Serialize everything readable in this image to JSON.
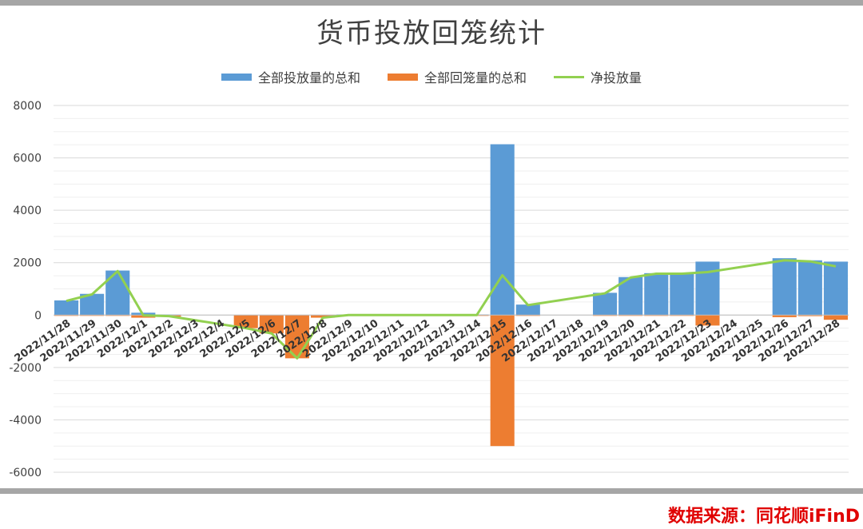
{
  "chart_data": {
    "type": "bar",
    "title": "货币投放回笼统计",
    "categories": [
      "2022/11/28",
      "2022/11/29",
      "2022/11/30",
      "2022/12/1",
      "2022/12/2",
      "2022/12/3",
      "2022/12/4",
      "2022/12/5",
      "2022/12/6",
      "2022/12/7",
      "2022/12/8",
      "2022/12/9",
      "2022/12/10",
      "2022/12/11",
      "2022/12/12",
      "2022/12/13",
      "2022/12/14",
      "2022/12/15",
      "2022/12/16",
      "2022/12/17",
      "2022/12/18",
      "2022/12/19",
      "2022/12/20",
      "2022/12/21",
      "2022/12/22",
      "2022/12/23",
      "2022/12/24",
      "2022/12/25",
      "2022/12/26",
      "2022/12/27",
      "2022/12/28"
    ],
    "series": [
      {
        "name": "全部投放量的总和",
        "type": "bar",
        "color": "#5b9bd5",
        "values": [
          560,
          810,
          1700,
          90,
          20,
          null,
          null,
          null,
          null,
          null,
          0,
          20,
          20,
          20,
          20,
          20,
          20,
          6520,
          400,
          null,
          null,
          850,
          1450,
          1600,
          1600,
          2040,
          null,
          null,
          2170,
          2090,
          2040
        ]
      },
      {
        "name": "全部回笼量的总和",
        "type": "bar",
        "color": "#ed7d31",
        "values": [
          -20,
          -20,
          -20,
          -100,
          -60,
          null,
          null,
          -500,
          -700,
          -1650,
          -100,
          -20,
          -20,
          -20,
          -20,
          -20,
          -20,
          -5000,
          -20,
          null,
          null,
          -20,
          -20,
          -20,
          -20,
          -400,
          null,
          null,
          -80,
          -40,
          -180
        ]
      },
      {
        "name": "净投放量",
        "type": "line",
        "color": "#92d050",
        "values": [
          540,
          790,
          1680,
          -10,
          -40,
          null,
          null,
          -500,
          -700,
          -1650,
          -100,
          0,
          0,
          0,
          0,
          0,
          0,
          1520,
          380,
          null,
          null,
          830,
          1430,
          1580,
          1580,
          1640,
          null,
          null,
          2090,
          2050,
          1860
        ]
      }
    ],
    "ylim": [
      -6000,
      8000
    ],
    "yticks": [
      -6000,
      -4000,
      -2000,
      0,
      2000,
      4000,
      6000,
      8000
    ],
    "grid": true,
    "legend_position": "top-center"
  },
  "source_label": "数据来源：同花顺iFinD"
}
